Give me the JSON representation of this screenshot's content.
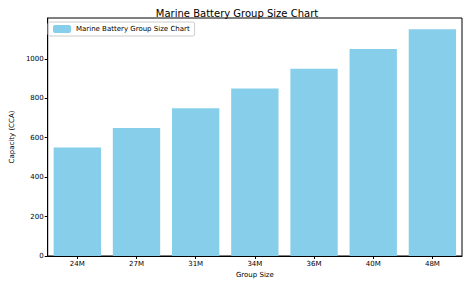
{
  "chart_data": {
    "type": "bar",
    "title": "Marine Battery Group Size Chart",
    "xlabel": "Group Size",
    "ylabel": "Capacity (CCA)",
    "categories": [
      "24M",
      "27M",
      "31M",
      "34M",
      "36M",
      "40M",
      "48M"
    ],
    "series": [
      {
        "name": "Marine Battery Group Size Chart",
        "color": "#87ceeb",
        "values": [
          550,
          650,
          750,
          850,
          950,
          1050,
          1150
        ]
      }
    ],
    "ylim": [
      0,
      1207.5
    ],
    "yticks": [
      0,
      200,
      400,
      600,
      800,
      1000
    ],
    "grid": false,
    "legend": "upper left"
  }
}
